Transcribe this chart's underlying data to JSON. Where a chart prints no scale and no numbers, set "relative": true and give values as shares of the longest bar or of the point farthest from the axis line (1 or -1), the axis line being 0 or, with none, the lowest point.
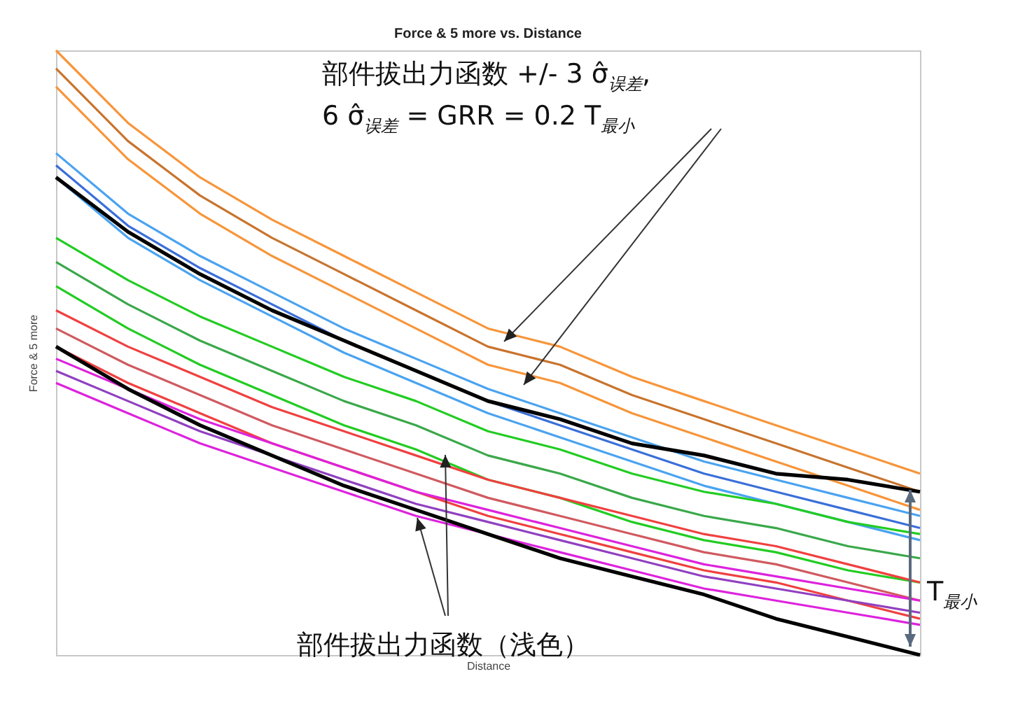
{
  "chart_data": {
    "type": "line",
    "relative": true,
    "title": "Force & 5 more vs. Distance",
    "xlabel": "Distance",
    "ylabel": "Force & 5 more",
    "grid": false,
    "categories": [
      null,
      null,
      null,
      null,
      null,
      null,
      null,
      null,
      null,
      null,
      null,
      null,
      null
    ],
    "series": [
      {
        "color": "#f7953a",
        "values": [
          1.0,
          0.88,
          0.79,
          0.72,
          0.66,
          0.6,
          0.54,
          0.51,
          0.46,
          0.42,
          0.38,
          0.34,
          0.3
        ]
      },
      {
        "color": "#f7953a",
        "values": [
          0.94,
          0.82,
          0.73,
          0.66,
          0.6,
          0.54,
          0.48,
          0.45,
          0.4,
          0.36,
          0.32,
          0.28,
          0.24
        ]
      },
      {
        "color": "#c8742e",
        "values": [
          0.97,
          0.85,
          0.76,
          0.69,
          0.63,
          0.57,
          0.51,
          0.48,
          0.43,
          0.39,
          0.35,
          0.31,
          0.27
        ]
      },
      {
        "color": "#4aa3f0",
        "values": [
          0.83,
          0.73,
          0.66,
          0.6,
          0.54,
          0.49,
          0.44,
          0.4,
          0.36,
          0.32,
          0.29,
          0.26,
          0.23
        ]
      },
      {
        "color": "#4aa3f0",
        "values": [
          0.79,
          0.69,
          0.62,
          0.56,
          0.5,
          0.45,
          0.4,
          0.36,
          0.32,
          0.28,
          0.25,
          0.22,
          0.19
        ]
      },
      {
        "color": "#3a6fd8",
        "values": [
          0.81,
          0.71,
          0.64,
          0.58,
          0.52,
          0.47,
          0.42,
          0.38,
          0.34,
          0.3,
          0.27,
          0.24,
          0.21
        ]
      },
      {
        "color": "#22cc22",
        "values": [
          0.69,
          0.62,
          0.56,
          0.51,
          0.46,
          0.42,
          0.37,
          0.34,
          0.3,
          0.27,
          0.25,
          0.22,
          0.2
        ]
      },
      {
        "color": "#22cc22",
        "values": [
          0.61,
          0.54,
          0.48,
          0.43,
          0.38,
          0.34,
          0.29,
          0.26,
          0.22,
          0.19,
          0.17,
          0.14,
          0.12
        ]
      },
      {
        "color": "#3aa84a",
        "values": [
          0.65,
          0.58,
          0.52,
          0.47,
          0.42,
          0.38,
          0.33,
          0.3,
          0.26,
          0.23,
          0.21,
          0.18,
          0.16
        ]
      },
      {
        "color": "#f04040",
        "values": [
          0.57,
          0.51,
          0.46,
          0.41,
          0.37,
          0.33,
          0.29,
          0.26,
          0.23,
          0.2,
          0.18,
          0.15,
          0.12
        ]
      },
      {
        "color": "#f04040",
        "values": [
          0.51,
          0.45,
          0.4,
          0.35,
          0.31,
          0.27,
          0.23,
          0.2,
          0.17,
          0.14,
          0.12,
          0.09,
          0.06
        ]
      },
      {
        "color": "#d05a60",
        "values": [
          0.54,
          0.48,
          0.43,
          0.38,
          0.34,
          0.3,
          0.26,
          0.23,
          0.2,
          0.17,
          0.15,
          0.12,
          0.09
        ]
      },
      {
        "color": "#dd22dd",
        "values": [
          0.49,
          0.44,
          0.39,
          0.35,
          0.31,
          0.27,
          0.24,
          0.21,
          0.18,
          0.15,
          0.13,
          0.11,
          0.09
        ]
      },
      {
        "color": "#dd22dd",
        "values": [
          0.45,
          0.4,
          0.35,
          0.31,
          0.27,
          0.23,
          0.2,
          0.17,
          0.14,
          0.11,
          0.09,
          0.07,
          0.05
        ]
      },
      {
        "color": "#9040c0",
        "values": [
          0.47,
          0.42,
          0.37,
          0.33,
          0.29,
          0.25,
          0.22,
          0.19,
          0.16,
          0.13,
          0.11,
          0.09,
          0.07
        ]
      },
      {
        "color": "#000000",
        "values": [
          0.79,
          0.7,
          0.63,
          0.57,
          0.52,
          0.47,
          0.42,
          0.39,
          0.35,
          0.33,
          0.3,
          0.29,
          0.27
        ]
      },
      {
        "color": "#000000",
        "values": [
          0.51,
          0.44,
          0.38,
          0.33,
          0.28,
          0.24,
          0.2,
          0.16,
          0.13,
          0.1,
          0.06,
          0.03,
          0.0
        ]
      }
    ],
    "annotations": [
      "部件拔出力函数 +/- 3 σ̂$_{误差}$,",
      "6 σ̂$_{误差}$ = GRR = 0.2 T$_{最小}$",
      "部件拔出力函数（浅色）",
      "T$_{最小}$"
    ]
  }
}
